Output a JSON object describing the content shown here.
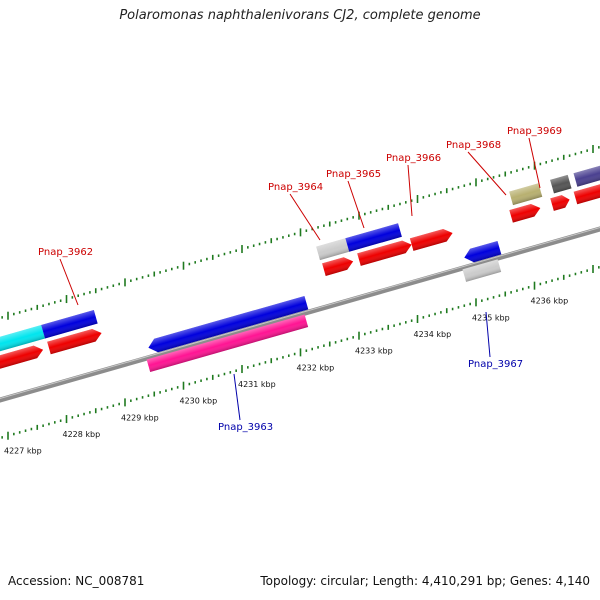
{
  "title": "Polaromonas naphthalenivorans CJ2, complete genome",
  "footer": {
    "accession": "Accession: NC_008781",
    "summary": "Topology: circular; Length: 4,410,291 bp; Genes: 4,140"
  },
  "colors": {
    "backbone": "#8c8c8c",
    "tick": "#1f7a1f",
    "label_forward": "#cc0000",
    "label_reverse": "#0000aa"
  },
  "ticks": [
    {
      "label": "4227 kbp",
      "kbp": 4227
    },
    {
      "label": "4228 kbp",
      "kbp": 4228
    },
    {
      "label": "4229 kbp",
      "kbp": 4229
    },
    {
      "label": "4230 kbp",
      "kbp": 4230
    },
    {
      "label": "4231 kbp",
      "kbp": 4231
    },
    {
      "label": "4232 kbp",
      "kbp": 4232
    },
    {
      "label": "4233 kbp",
      "kbp": 4233
    },
    {
      "label": "4234 kbp",
      "kbp": 4234
    },
    {
      "label": "4235 kbp",
      "kbp": 4235
    },
    {
      "label": "4236 kbp",
      "kbp": 4236
    }
  ],
  "gene_labels": [
    {
      "text": "Pnap_3962",
      "strand": "forward"
    },
    {
      "text": "Pnap_3963",
      "strand": "reverse"
    },
    {
      "text": "Pnap_3964",
      "strand": "forward"
    },
    {
      "text": "Pnap_3965",
      "strand": "forward"
    },
    {
      "text": "Pnap_3966",
      "strand": "forward"
    },
    {
      "text": "Pnap_3967",
      "strand": "reverse"
    },
    {
      "text": "Pnap_3968",
      "strand": "forward"
    },
    {
      "text": "Pnap_3969",
      "strand": "forward"
    }
  ],
  "features": [
    {
      "track": "forward-outer",
      "start_kbp": 4226.6,
      "end_kbp": 4227.6,
      "color": "#00e5ee"
    },
    {
      "track": "forward-outer",
      "start_kbp": 4227.6,
      "end_kbp": 4228.5,
      "color": "#0000dd"
    },
    {
      "track": "forward-cds",
      "start_kbp": 4226.6,
      "end_kbp": 4227.6,
      "color": "#ee0000"
    },
    {
      "track": "forward-cds",
      "start_kbp": 4227.7,
      "end_kbp": 4228.6,
      "color": "#ee0000"
    },
    {
      "track": "reverse-inner",
      "start_kbp": 4229.4,
      "end_kbp": 4232.1,
      "color": "#0000dd"
    },
    {
      "track": "reverse-cds",
      "start_kbp": 4229.4,
      "end_kbp": 4232.1,
      "color": "#ff1493"
    },
    {
      "track": "forward-outer",
      "start_kbp": 4232.3,
      "end_kbp": 4232.8,
      "color": "#cccccc"
    },
    {
      "track": "forward-outer",
      "start_kbp": 4232.8,
      "end_kbp": 4233.7,
      "color": "#0000dd"
    },
    {
      "track": "forward-cds",
      "start_kbp": 4232.4,
      "end_kbp": 4232.9,
      "color": "#ee0000"
    },
    {
      "track": "forward-cds",
      "start_kbp": 4233.0,
      "end_kbp": 4233.9,
      "color": "#ee0000"
    },
    {
      "track": "forward-cds",
      "start_kbp": 4233.9,
      "end_kbp": 4234.6,
      "color": "#ee0000"
    },
    {
      "track": "reverse-inner",
      "start_kbp": 4234.8,
      "end_kbp": 4235.4,
      "color": "#0000dd"
    },
    {
      "track": "reverse-cds",
      "start_kbp": 4234.8,
      "end_kbp": 4235.4,
      "color": "#cccccc"
    },
    {
      "track": "forward-outer",
      "start_kbp": 4235.6,
      "end_kbp": 4236.1,
      "color": "#b8b070"
    },
    {
      "track": "forward-cds",
      "start_kbp": 4235.6,
      "end_kbp": 4236.1,
      "color": "#ee0000"
    },
    {
      "track": "forward-outer",
      "start_kbp": 4236.3,
      "end_kbp": 4236.6,
      "color": "#555555"
    },
    {
      "track": "forward-cds",
      "start_kbp": 4236.3,
      "end_kbp": 4236.6,
      "color": "#ee0000"
    },
    {
      "track": "forward-outer",
      "start_kbp": 4236.7,
      "end_kbp": 4237.5,
      "color": "#4a4090"
    },
    {
      "track": "forward-cds",
      "start_kbp": 4236.7,
      "end_kbp": 4237.5,
      "color": "#ee0000"
    }
  ]
}
